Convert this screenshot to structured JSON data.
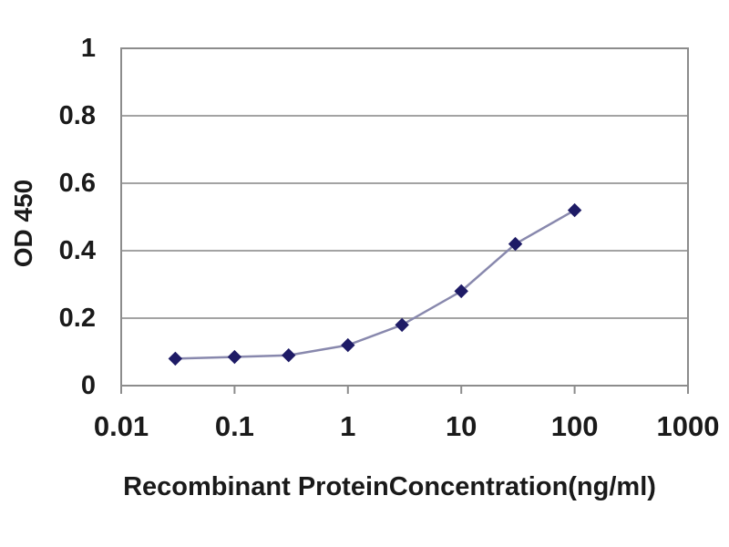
{
  "chart_data": {
    "type": "line",
    "title": "",
    "xlabel": "Recombinant ProteinConcentration(ng/ml)",
    "ylabel": "OD 450",
    "x_scale": "log",
    "xlim": [
      0.01,
      1000
    ],
    "ylim": [
      0,
      1
    ],
    "x_tick_labels": [
      "0.01",
      "0.1",
      "1",
      "10",
      "100",
      "1000"
    ],
    "x_tick_values": [
      0.01,
      0.1,
      1,
      10,
      100,
      1000
    ],
    "y_tick_labels": [
      "0",
      "0.2",
      "0.4",
      "0.6",
      "0.8",
      "1"
    ],
    "y_tick_values": [
      0,
      0.2,
      0.4,
      0.6,
      0.8,
      1
    ],
    "grid": true,
    "legend": "none",
    "marker_shape": "diamond",
    "series": [
      {
        "name": "OD450",
        "x": [
          0.03,
          0.1,
          0.3,
          1,
          3,
          10,
          30,
          100
        ],
        "values": [
          0.08,
          0.085,
          0.09,
          0.12,
          0.18,
          0.28,
          0.42,
          0.52
        ]
      }
    ],
    "colors": {
      "marker": "#1e1b66",
      "line": "#8888ad",
      "grid": "#a3a3a3",
      "plot_border": "#8c8c8c",
      "text": "#1a1a1a",
      "background": "#ffffff"
    }
  }
}
